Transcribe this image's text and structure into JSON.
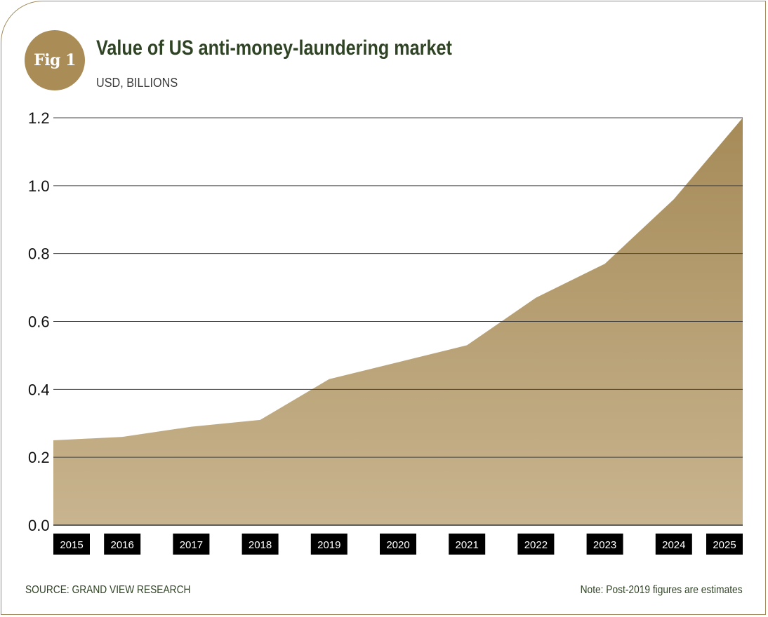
{
  "badge": "Fig 1",
  "footer": {
    "source": "SOURCE: GRAND VIEW RESEARCH",
    "note": "Note: Post-2019 figures are estimates"
  },
  "colors": {
    "area_top": "#a68b58",
    "area_bottom": "#c8b48f",
    "title": "#2f4424",
    "badge": "#a98c56",
    "tick_box": "#000000"
  },
  "chart_data": {
    "type": "area",
    "title": "Value of US anti-money-laundering market",
    "subtitle": "USD, BILLIONS",
    "categories": [
      "2015",
      "2016",
      "2017",
      "2018",
      "2019",
      "2020",
      "2021",
      "2022",
      "2023",
      "2024",
      "2025"
    ],
    "values": [
      0.25,
      0.26,
      0.29,
      0.31,
      0.43,
      0.48,
      0.53,
      0.67,
      0.77,
      0.96,
      1.2
    ],
    "ylim": [
      0,
      1.2
    ],
    "yticks": [
      "0.0",
      "0.2",
      "0.4",
      "0.6",
      "0.8",
      "1.0",
      "1.2"
    ],
    "grid": true,
    "legend": "none"
  }
}
